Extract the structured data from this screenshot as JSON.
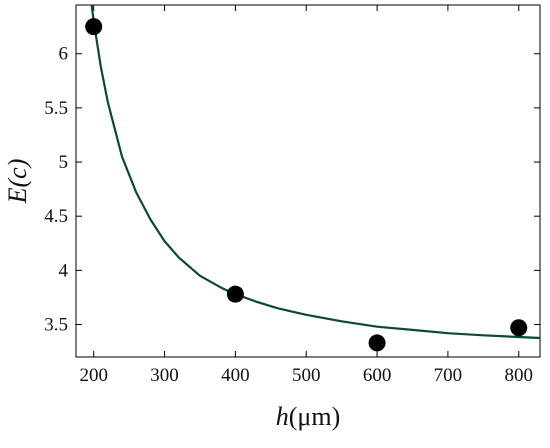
{
  "chart_data": {
    "type": "scatter",
    "title": "",
    "xlabel": {
      "var": "h",
      "unit": "(μm)"
    },
    "ylabel": {
      "var": "E",
      "arg": "(c)"
    },
    "xlim": [
      175,
      830
    ],
    "ylim": [
      3.2,
      6.45
    ],
    "x_ticks": [
      200,
      300,
      400,
      500,
      600,
      700,
      800
    ],
    "y_ticks": [
      3.5,
      4,
      4.5,
      5,
      5.5,
      6
    ],
    "y_tick_labels": [
      "3.5",
      "4",
      "4.5",
      "5",
      "5.5",
      "6"
    ],
    "grid": false,
    "legend": "none",
    "series": [
      {
        "type": "scatter",
        "x": [
          200,
          400,
          600,
          800
        ],
        "y": [
          6.25,
          3.78,
          3.33,
          3.47
        ],
        "color": "#000000"
      },
      {
        "type": "line",
        "x": [
          190,
          195,
          200,
          210,
          220,
          240,
          260,
          280,
          300,
          320,
          350,
          380,
          400,
          430,
          460,
          500,
          550,
          600,
          650,
          700,
          750,
          800,
          830
        ],
        "y": [
          6.8,
          6.55,
          6.3,
          5.88,
          5.55,
          5.05,
          4.72,
          4.47,
          4.27,
          4.12,
          3.95,
          3.84,
          3.78,
          3.71,
          3.65,
          3.59,
          3.53,
          3.48,
          3.45,
          3.42,
          3.4,
          3.385,
          3.375
        ],
        "color": "#0b4a2f"
      }
    ]
  }
}
